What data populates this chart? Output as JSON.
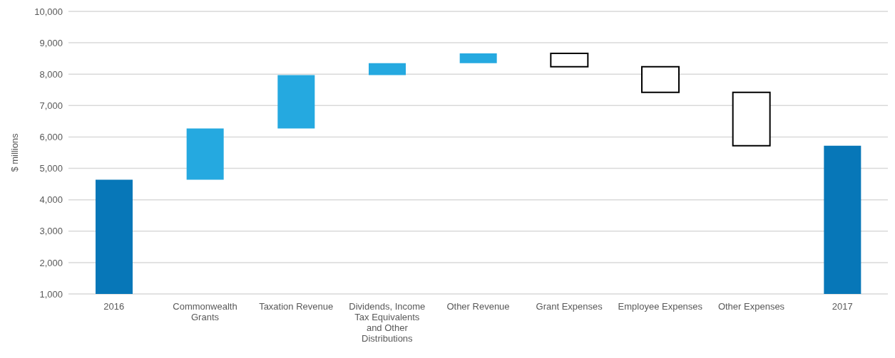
{
  "chart_data": {
    "type": "bar",
    "ylabel": "$ millions",
    "categories": [
      "2016",
      "Commonwealth Grants",
      "Taxation Revenue",
      "Dividends, Income Tax Equivalents and Other Distributions",
      "Other Revenue",
      "Grant Expenses",
      "Employee Expenses",
      "Other Expenses",
      "2017"
    ],
    "values": [
      4640,
      1630,
      1700,
      380,
      310,
      -420,
      -820,
      -1700,
      5720
    ],
    "base": [
      null,
      4640,
      6270,
      7970,
      8350,
      8660,
      8240,
      7420,
      null
    ],
    "colors": [
      "#0777b8",
      "#25a9e0",
      "#25a9e0",
      "#25a9e0",
      "#25a9e0",
      "#ffffff",
      "#ffffff",
      "#ffffff",
      "#0777b8"
    ],
    "ylim": [
      1000,
      10000
    ],
    "yticks": [
      {
        "value": 1000,
        "label": "1,000"
      },
      {
        "value": 2000,
        "label": "2,000"
      },
      {
        "value": 3000,
        "label": "3,000"
      },
      {
        "value": 4000,
        "label": "4,000"
      },
      {
        "value": 5000,
        "label": "5,000"
      },
      {
        "value": 6000,
        "label": "6,000"
      },
      {
        "value": 7000,
        "label": "7,000"
      },
      {
        "value": 8000,
        "label": "8,000"
      },
      {
        "value": 9000,
        "label": "9,000"
      },
      {
        "value": 10000,
        "label": "10,000"
      }
    ],
    "grid": "y"
  }
}
